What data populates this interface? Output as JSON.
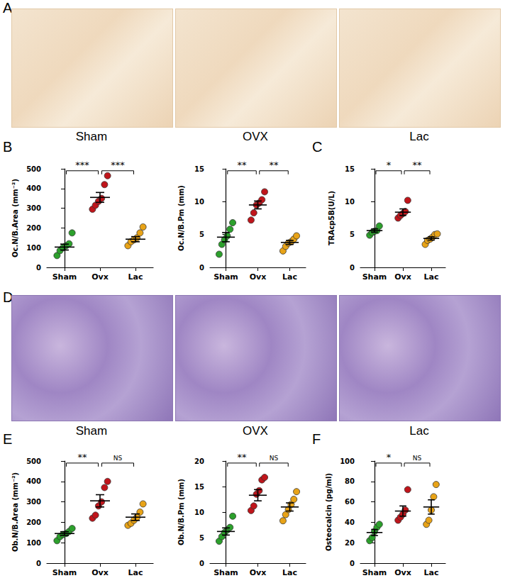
{
  "figure_panels": [
    {
      "label": "A",
      "captions": [
        "Sham",
        "OVX",
        "Lac"
      ]
    },
    {
      "label": "B"
    },
    {
      "label": "C"
    },
    {
      "label": "D",
      "captions": [
        "Sham",
        "OVX",
        "Lac"
      ]
    },
    {
      "label": "E"
    },
    {
      "label": "F"
    }
  ],
  "chart_data": [
    {
      "type": "scatter",
      "y_label": "Oc.N/B.Area (mm⁻²)",
      "categories": [
        "Sham",
        "Ovx",
        "Lac"
      ],
      "colors": [
        "#2ca02c",
        "#c0151b",
        "#e8a317"
      ],
      "marker": "circle",
      "grid": false,
      "points": [
        [
          60,
          85,
          100,
          110,
          120,
          175
        ],
        [
          295,
          315,
          335,
          350,
          420,
          465
        ],
        [
          110,
          130,
          140,
          150,
          175,
          205
        ]
      ],
      "mean": [
        103,
        355,
        143
      ],
      "sem": [
        15,
        25,
        13
      ],
      "ylim": [
        0,
        500
      ],
      "yticks": [
        0,
        100,
        200,
        300,
        400,
        500
      ],
      "comparisons": [
        {
          "from": "Sham",
          "to": "Ovx",
          "label": "***"
        },
        {
          "from": "Ovx",
          "to": "Lac",
          "label": "***"
        }
      ]
    },
    {
      "type": "scatter",
      "y_label": "Oc.N/B.Pm (mm)",
      "categories": [
        "Sham",
        "Ovx",
        "Lac"
      ],
      "colors": [
        "#2ca02c",
        "#c0151b",
        "#e8a317"
      ],
      "marker": "circle",
      "grid": false,
      "points": [
        [
          2.0,
          3.5,
          4.2,
          4.8,
          5.8,
          6.8
        ],
        [
          7.2,
          8.3,
          9.5,
          9.8,
          10.3,
          11.5
        ],
        [
          2.5,
          3.2,
          3.7,
          3.9,
          4.3,
          4.8
        ]
      ],
      "mean": [
        4.6,
        9.5,
        3.8
      ],
      "sem": [
        0.7,
        0.6,
        0.3
      ],
      "ylim": [
        0,
        15
      ],
      "yticks": [
        0,
        5,
        10,
        15
      ],
      "comparisons": [
        {
          "from": "Sham",
          "to": "Ovx",
          "label": "**"
        },
        {
          "from": "Ovx",
          "to": "Lac",
          "label": "**"
        }
      ]
    },
    {
      "type": "scatter",
      "y_label": "TRAcp5B(U/L)",
      "categories": [
        "Sham",
        "Ovx",
        "Lac"
      ],
      "colors": [
        "#2ca02c",
        "#c0151b",
        "#e8a317"
      ],
      "marker": "circle",
      "grid": false,
      "points": [
        [
          4.9,
          5.3,
          5.5,
          5.6,
          6.3
        ],
        [
          7.5,
          7.9,
          8.2,
          8.5,
          10.2
        ],
        [
          3.5,
          4.1,
          4.3,
          4.6,
          5.0,
          5.1
        ]
      ],
      "mean": [
        5.6,
        8.4,
        4.4
      ],
      "sem": [
        0.25,
        0.5,
        0.25
      ],
      "ylim": [
        0,
        15
      ],
      "yticks": [
        0,
        5,
        10,
        15
      ],
      "comparisons": [
        {
          "from": "Sham",
          "to": "Ovx",
          "label": "*"
        },
        {
          "from": "Ovx",
          "to": "Lac",
          "label": "**"
        }
      ]
    },
    {
      "type": "scatter",
      "y_label": "Ob.N/B.Area (mm⁻²)",
      "categories": [
        "Sham",
        "Ovx",
        "Lac"
      ],
      "colors": [
        "#2ca02c",
        "#c0151b",
        "#e8a317"
      ],
      "marker": "circle",
      "grid": false,
      "points": [
        [
          110,
          130,
          140,
          145,
          155,
          170
        ],
        [
          220,
          235,
          280,
          300,
          370,
          400
        ],
        [
          185,
          195,
          210,
          225,
          250,
          290
        ]
      ],
      "mean": [
        145,
        305,
        225
      ],
      "sem": [
        9,
        30,
        16
      ],
      "ylim": [
        0,
        500
      ],
      "yticks": [
        0,
        100,
        200,
        300,
        400,
        500
      ],
      "comparisons": [
        {
          "from": "Sham",
          "to": "Ovx",
          "label": "**"
        },
        {
          "from": "Ovx",
          "to": "Lac",
          "label": "NS"
        }
      ]
    },
    {
      "type": "scatter",
      "y_label": "Ob.N/B.Pm (mm)",
      "categories": [
        "Sham",
        "Ovx",
        "Lac"
      ],
      "colors": [
        "#2ca02c",
        "#c0151b",
        "#e8a317"
      ],
      "marker": "circle",
      "grid": false,
      "points": [
        [
          4.3,
          5.2,
          6.0,
          6.5,
          7.0,
          9.2
        ],
        [
          10.3,
          11.2,
          13.5,
          14.2,
          16.3,
          16.8
        ],
        [
          8.3,
          9.5,
          10.5,
          11.5,
          12.5,
          14.0
        ]
      ],
      "mean": [
        6.2,
        13.3,
        11.0
      ],
      "sem": [
        0.7,
        1.1,
        0.8
      ],
      "ylim": [
        0,
        20
      ],
      "yticks": [
        0,
        5,
        10,
        15,
        20
      ],
      "comparisons": [
        {
          "from": "Sham",
          "to": "Ovx",
          "label": "**"
        },
        {
          "from": "Ovx",
          "to": "Lac",
          "label": "NS"
        }
      ]
    },
    {
      "type": "scatter",
      "y_label": "Osteocalcin (pg/ml)",
      "categories": [
        "Sham",
        "Ovx",
        "Lac"
      ],
      "colors": [
        "#2ca02c",
        "#c0151b",
        "#e8a317"
      ],
      "marker": "circle",
      "grid": false,
      "points": [
        [
          22,
          25,
          31,
          35,
          38
        ],
        [
          42,
          45,
          48,
          52,
          72
        ],
        [
          38,
          42,
          52,
          65,
          77
        ]
      ],
      "mean": [
        30,
        51,
        55
      ],
      "sem": [
        3,
        5,
        7
      ],
      "ylim": [
        0,
        100
      ],
      "yticks": [
        0,
        20,
        40,
        60,
        80,
        100
      ],
      "comparisons": [
        {
          "from": "Sham",
          "to": "Ovx",
          "label": "*"
        },
        {
          "from": "Ovx",
          "to": "Lac",
          "label": "NS"
        }
      ]
    }
  ]
}
